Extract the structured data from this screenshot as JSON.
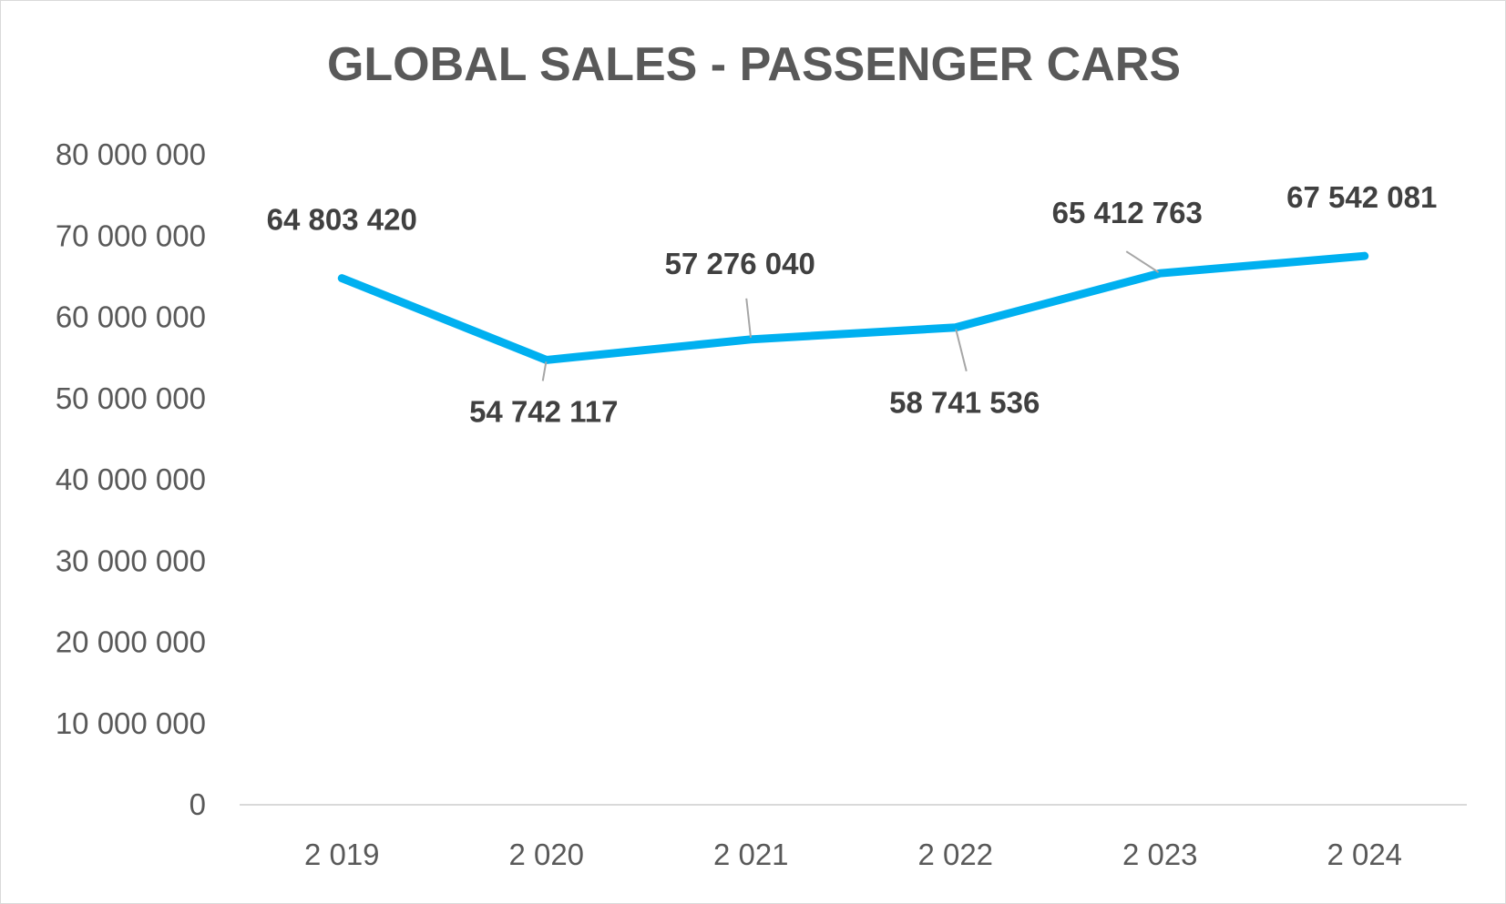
{
  "chart_data": {
    "type": "line",
    "title": "GLOBAL SALES - PASSENGER CARS",
    "xlabel": "",
    "ylabel": "",
    "categories": [
      "2 019",
      "2 020",
      "2 021",
      "2 022",
      "2 023",
      "2 024"
    ],
    "series": [
      {
        "values": [
          64803420,
          54742117,
          57276040,
          58741536,
          65412763,
          67542081
        ],
        "labels": [
          "64 803 420",
          "54 742 117",
          "57 276 040",
          "58 741 536",
          "65 412 763",
          "67 542 081"
        ],
        "color": "#00b0f0"
      }
    ],
    "ylim": [
      0,
      80000000
    ],
    "yticks": [
      0,
      10000000,
      20000000,
      30000000,
      40000000,
      50000000,
      60000000,
      70000000,
      80000000
    ],
    "ytick_labels": [
      "0",
      "10 000 000",
      "20 000 000",
      "30 000 000",
      "40 000 000",
      "50 000 000",
      "60 000 000",
      "70 000 000",
      "80 000 000"
    ],
    "grid": false,
    "legend": "none"
  }
}
